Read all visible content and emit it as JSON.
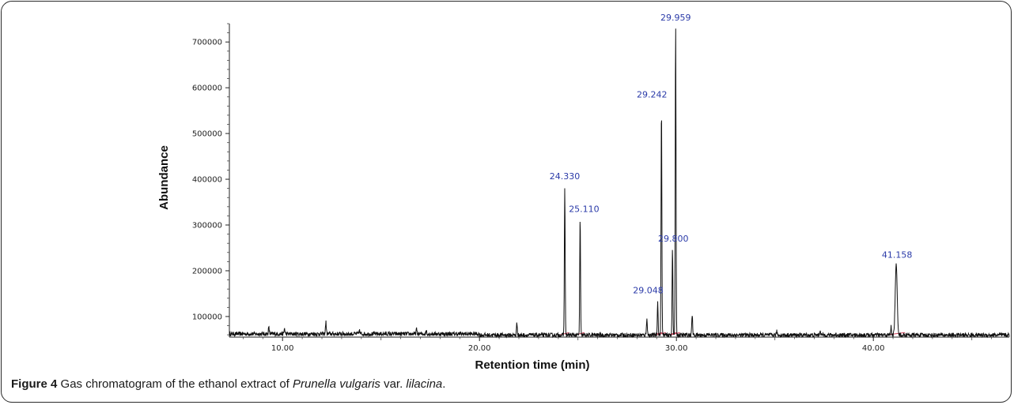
{
  "caption": {
    "figure_label": "Figure 4",
    "text_before": " Gas chromatogram of the ethanol extract of ",
    "species": "Prunella vulgaris",
    "text_middle": " var. ",
    "variety": "lilacina",
    "text_after": "."
  },
  "chart_data": {
    "type": "line",
    "title": "",
    "xlabel": "Retention time (min)",
    "ylabel": "Abundance",
    "xlim": [
      7.3,
      46.9
    ],
    "ylim": [
      55000,
      740000
    ],
    "x_ticks": [
      10,
      20,
      30,
      40
    ],
    "x_tick_labels": [
      "10.00",
      "20.00",
      "30.00",
      "40.00"
    ],
    "y_ticks": [
      100000,
      200000,
      300000,
      400000,
      500000,
      600000,
      700000
    ],
    "y_tick_labels": [
      "100000",
      "200000",
      "300000",
      "400000",
      "500000",
      "600000",
      "700000"
    ],
    "baseline": 62000,
    "line_color": "#111111",
    "label_color": "#2a3aa8",
    "integration_color": "#d0405a",
    "labeled_peaks": [
      {
        "label": "24.330",
        "x": 24.33,
        "y": 388000
      },
      {
        "label": "25.110",
        "x": 25.11,
        "y": 318000
      },
      {
        "label": "29.048",
        "x": 29.05,
        "y": 135000
      },
      {
        "label": "29.242",
        "x": 29.24,
        "y": 565000
      },
      {
        "label": "29.800",
        "x": 29.8,
        "y": 255000
      },
      {
        "label": "29.959",
        "x": 29.96,
        "y": 740000
      },
      {
        "label": "41.158",
        "x": 41.16,
        "y": 215000
      }
    ],
    "minor_peaks": [
      {
        "x": 9.3,
        "y": 76000
      },
      {
        "x": 10.1,
        "y": 74000
      },
      {
        "x": 12.2,
        "y": 88000
      },
      {
        "x": 13.9,
        "y": 70000
      },
      {
        "x": 16.8,
        "y": 72000
      },
      {
        "x": 17.3,
        "y": 70000
      },
      {
        "x": 21.9,
        "y": 88000
      },
      {
        "x": 28.5,
        "y": 100000
      },
      {
        "x": 30.8,
        "y": 107000
      },
      {
        "x": 35.1,
        "y": 70000
      },
      {
        "x": 37.3,
        "y": 74000
      },
      {
        "x": 40.9,
        "y": 80000
      }
    ]
  }
}
